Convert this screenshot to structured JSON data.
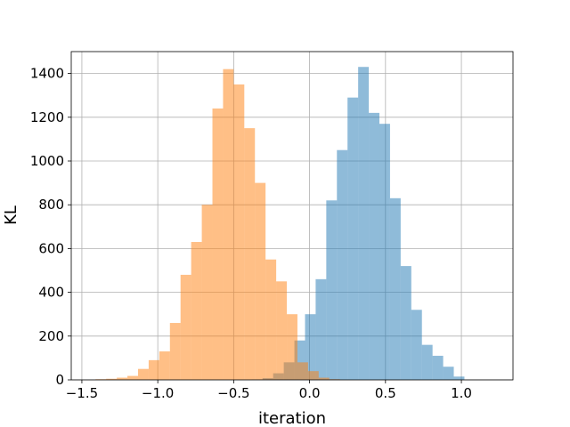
{
  "chart_data": {
    "type": "bar",
    "xlabel": "iteration",
    "ylabel": "KL",
    "xlim": [
      -1.57,
      1.34
    ],
    "ylim": [
      0,
      1500
    ],
    "xticks": [
      "-1.5",
      "-1.0",
      "-0.5",
      "0.0",
      "0.5",
      "1.0"
    ],
    "yticks": [
      "0",
      "200",
      "400",
      "600",
      "800",
      "1000",
      "1200",
      "1400"
    ],
    "grid": true,
    "bin_width": 0.07,
    "series": [
      {
        "color": "#1f77b4",
        "opacity": 0.5,
        "bins_left": [
          -0.38,
          -0.31,
          -0.24,
          -0.17,
          -0.1,
          -0.03,
          0.04,
          0.11,
          0.18,
          0.25,
          0.32,
          0.39,
          0.46,
          0.53,
          0.6,
          0.67,
          0.74,
          0.81,
          0.88,
          0.95
        ],
        "values": [
          2,
          8,
          30,
          80,
          180,
          300,
          460,
          820,
          1050,
          1290,
          1430,
          1220,
          1170,
          830,
          520,
          320,
          160,
          110,
          60,
          15
        ]
      },
      {
        "color": "#ff7f0e",
        "opacity": 0.5,
        "bins_left": [
          -1.41,
          -1.34,
          -1.27,
          -1.2,
          -1.13,
          -1.06,
          -0.99,
          -0.92,
          -0.85,
          -0.78,
          -0.71,
          -0.64,
          -0.57,
          -0.5,
          -0.43,
          -0.36,
          -0.29,
          -0.22,
          -0.15,
          -0.08,
          -0.01,
          0.06,
          0.13
        ],
        "values": [
          3,
          5,
          10,
          18,
          50,
          90,
          130,
          260,
          480,
          630,
          800,
          1240,
          1420,
          1350,
          1150,
          900,
          550,
          450,
          300,
          80,
          40,
          10,
          3
        ]
      }
    ]
  }
}
